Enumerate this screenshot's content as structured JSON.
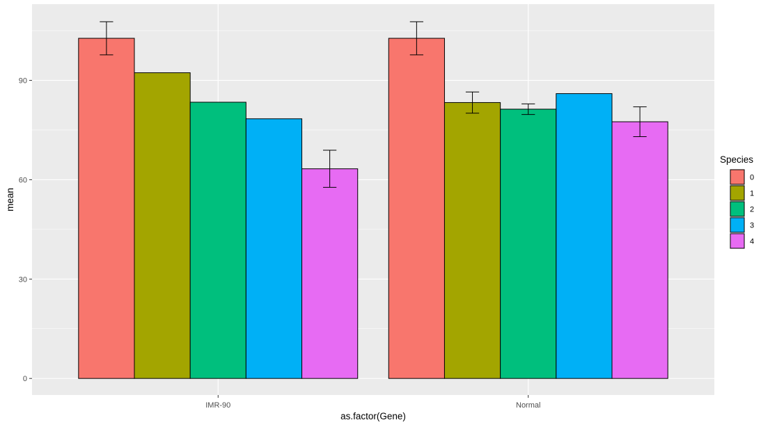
{
  "chart_data": {
    "type": "bar",
    "xlabel": "as.factor(Gene)",
    "ylabel": "mean",
    "categories": [
      "IMR-90",
      "Normal"
    ],
    "ylim": [
      -5,
      113
    ],
    "yticks": [
      0,
      30,
      60,
      90
    ],
    "grid": true,
    "legend": {
      "title": "Species",
      "position": "right"
    },
    "series": [
      {
        "name": "0",
        "color": "#F8766D",
        "values": [
          102.7,
          102.7
        ],
        "err": [
          5.0,
          5.0
        ]
      },
      {
        "name": "1",
        "color": "#A3A500",
        "values": [
          92.3,
          83.3
        ],
        "err": [
          null,
          3.2
        ]
      },
      {
        "name": "2",
        "color": "#00BF7D",
        "values": [
          83.4,
          81.3
        ],
        "err": [
          null,
          1.6
        ]
      },
      {
        "name": "3",
        "color": "#00B0F6",
        "values": [
          78.4,
          86.0
        ],
        "err": [
          null,
          null
        ]
      },
      {
        "name": "4",
        "color": "#E76BF3",
        "values": [
          63.3,
          77.5
        ],
        "err": [
          5.6,
          4.5
        ]
      }
    ]
  }
}
